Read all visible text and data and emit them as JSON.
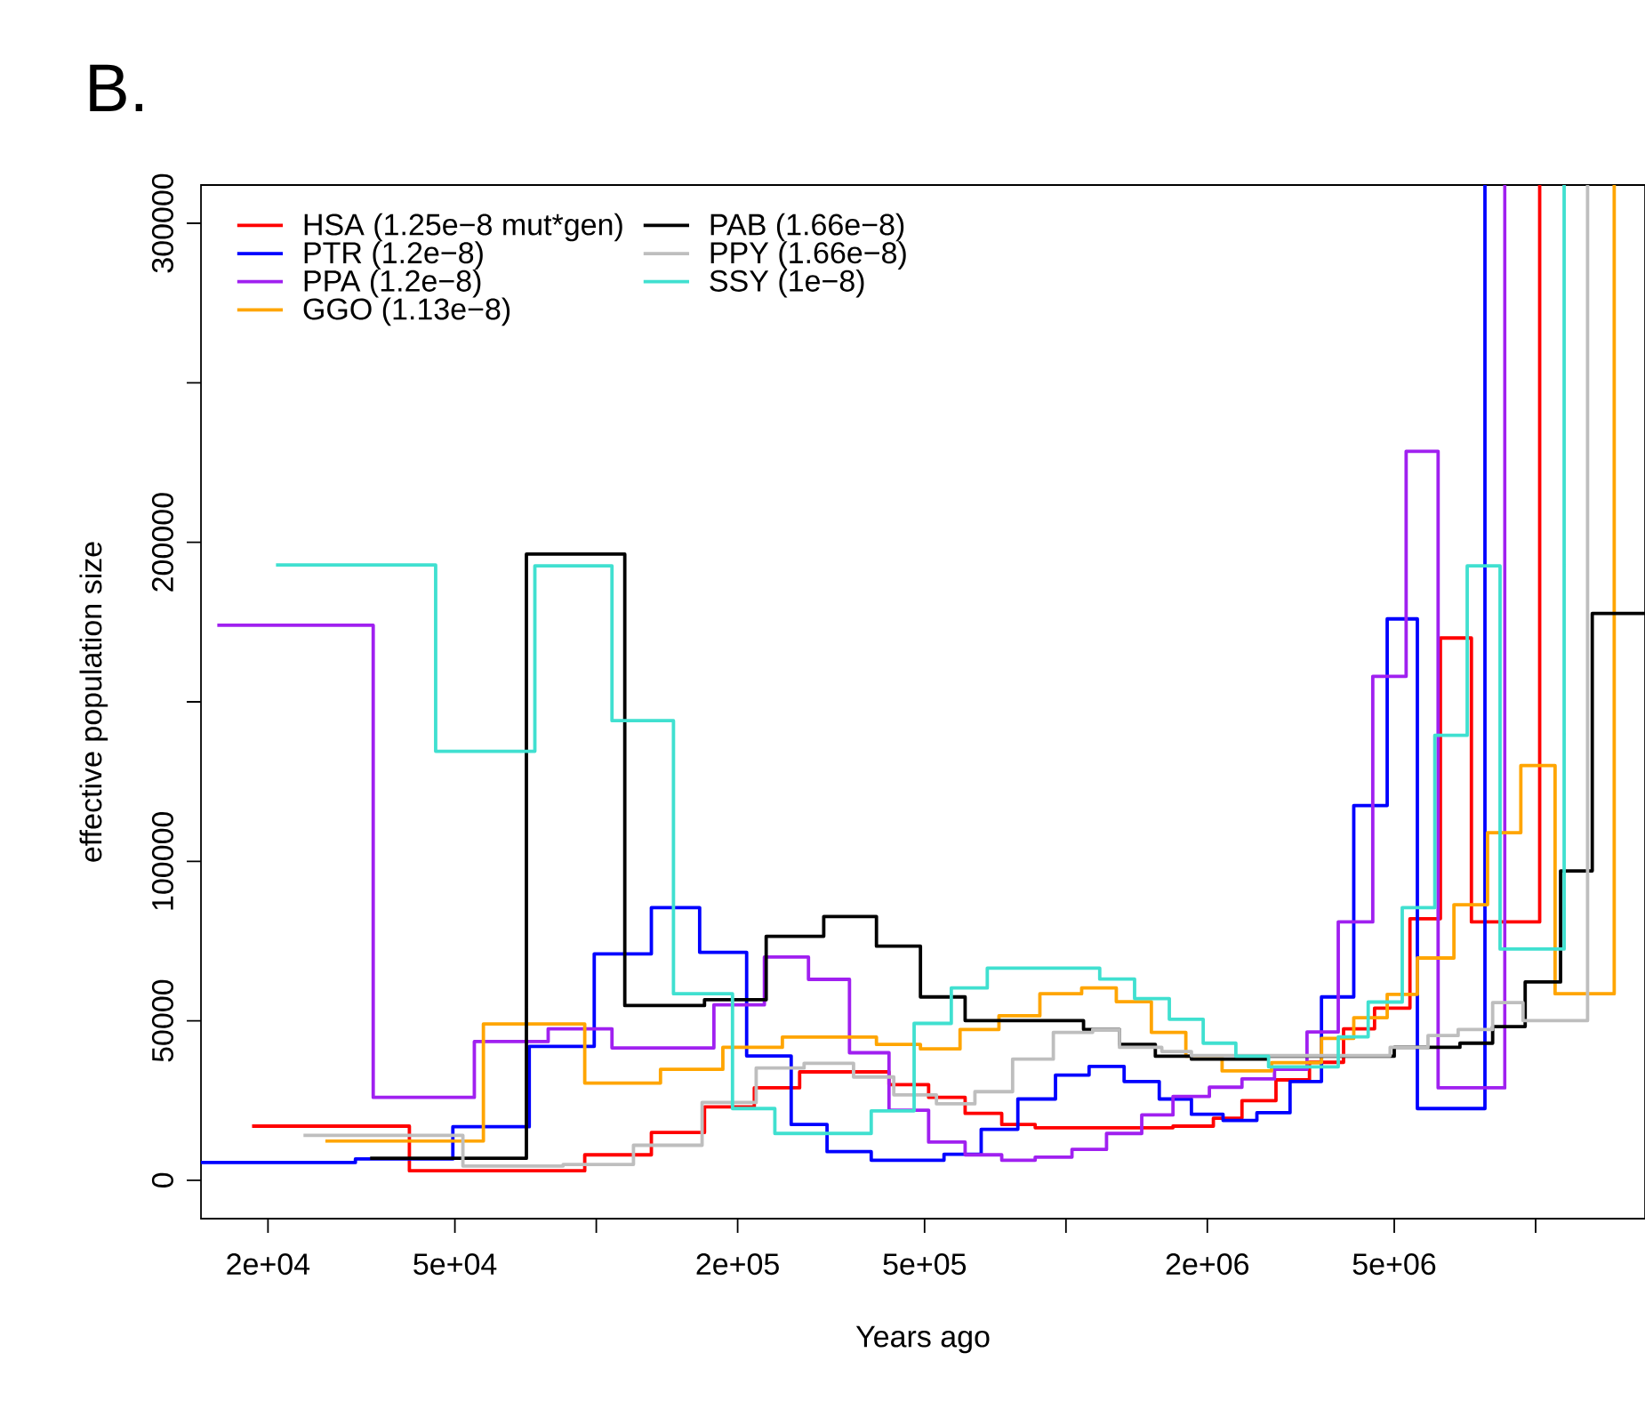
{
  "chart_data": {
    "type": "step",
    "title": "B.",
    "xlabel": "Years ago",
    "ylabel": "effective population size",
    "log": "x",
    "legend": "top left",
    "xlim": [
      14400,
      17100000
    ],
    "ylim": [
      -12000,
      312000
    ],
    "xticks": [
      {
        "value": 20000,
        "label": "2e+04"
      },
      {
        "value": 50000,
        "label": "5e+04"
      },
      {
        "value": 100000,
        "label": null
      },
      {
        "value": 200000,
        "label": "2e+05"
      },
      {
        "value": 500000,
        "label": "5e+05"
      },
      {
        "value": 1000000,
        "label": null
      },
      {
        "value": 2000000,
        "label": "2e+06"
      },
      {
        "value": 5000000,
        "label": "5e+06"
      },
      {
        "value": 10000000,
        "label": null
      }
    ],
    "yticks": [
      0,
      50000,
      100000,
      {
        "value": 150000,
        "label": null
      },
      200000,
      {
        "value": 250000,
        "label": null
      },
      300000
    ],
    "series": [
      {
        "name": "HSA (1.25e−8 mut*gen)",
        "color": "#ff0000",
        "x": [
          18500,
          40000,
          94500,
          131000,
          170000,
          217000,
          271000,
          420000,
          510000,
          610000,
          730000,
          860000,
          1690000,
          2060000,
          2370000,
          2800000,
          3300000,
          3900000,
          4540000,
          5400000,
          6270000,
          7300000,
          10200000
        ],
        "values": [
          17000,
          3000,
          8000,
          15000,
          23000,
          29000,
          34000,
          30000,
          26000,
          21000,
          17500,
          16500,
          17000,
          19500,
          25000,
          31500,
          37000,
          47500,
          54000,
          82000,
          170000,
          81000,
          312000
        ]
      },
      {
        "name": "PTR (1.2e−8)",
        "color": "#0000ff",
        "x": [
          14400,
          30700,
          49500,
          72000,
          99000,
          131000,
          166000,
          209000,
          260000,
          310000,
          385000,
          550000,
          660000,
          790000,
          950000,
          1120000,
          1330000,
          1580000,
          1850000,
          2160000,
          2550000,
          3000000,
          3500000,
          4100000,
          4830000,
          5600000,
          7800000
        ],
        "values": [
          5600,
          6700,
          16800,
          42000,
          71000,
          85500,
          71500,
          39000,
          17500,
          9000,
          6300,
          8200,
          16000,
          25500,
          33000,
          35700,
          31000,
          25500,
          20700,
          18800,
          21200,
          31000,
          57500,
          117500,
          176000,
          22500,
          312000
        ]
      },
      {
        "name": "PPA (1.2e−8)",
        "color": "#a020f0",
        "x": [
          15600,
          33500,
          55000,
          79000,
          108000,
          178000,
          228000,
          283000,
          346000,
          420000,
          510000,
          610000,
          730000,
          860000,
          1030000,
          1220000,
          1450000,
          1690000,
          2020000,
          2370000,
          2780000,
          3260000,
          3800000,
          4500000,
          5300000,
          6200000,
          8600000
        ],
        "values": [
          174000,
          26000,
          43500,
          47500,
          41500,
          55000,
          70000,
          63000,
          40000,
          22000,
          12000,
          8000,
          6300,
          7300,
          9700,
          14700,
          20500,
          26300,
          29200,
          31800,
          34800,
          46500,
          81000,
          158000,
          228500,
          29000,
          312000
        ]
      },
      {
        "name": "GGO (1.13e−8)",
        "color": "#ffa500",
        "x": [
          26500,
          57500,
          94500,
          137000,
          186000,
          249000,
          395000,
          490000,
          595000,
          720000,
          880000,
          1080000,
          1280000,
          1520000,
          1800000,
          2150000,
          2740000,
          3500000,
          4100000,
          4830000,
          5600000,
          6700000,
          7900000,
          9300000,
          11000000,
          14700000
        ],
        "values": [
          12300,
          49000,
          30500,
          34800,
          41700,
          44900,
          42600,
          41200,
          47300,
          51600,
          58500,
          60300,
          56000,
          46400,
          38900,
          34300,
          36900,
          44500,
          51000,
          58300,
          69700,
          86400,
          109000,
          130000,
          58500,
          312000
        ]
      },
      {
        "name": "PAB (1.66e−8)",
        "color": "#000000",
        "x": [
          33000,
          71000,
          115000,
          170000,
          230000,
          305000,
          395000,
          490000,
          610000,
          1090000,
          1300000,
          1550000,
          1850000,
          2680000,
          5000000,
          6900000,
          8100000,
          9500000,
          11300000,
          13200000,
          17100000
        ],
        "values": [
          6900,
          196300,
          54800,
          56600,
          76500,
          82700,
          73400,
          57500,
          50100,
          47300,
          42600,
          38900,
          38000,
          38900,
          41700,
          43000,
          48200,
          62200,
          97000,
          177700,
          177700
        ]
      },
      {
        "name": "PPY (1.66e−8)",
        "color": "#bebebe",
        "x": [
          23800,
          52000,
          85000,
          120000,
          168000,
          219000,
          277000,
          353000,
          430000,
          530000,
          640000,
          770000,
          940000,
          1140000,
          1300000,
          1600000,
          1850000,
          4900000,
          5900000,
          6840000,
          8100000,
          9400000,
          12900000
        ],
        "values": [
          14100,
          4500,
          5000,
          11000,
          24400,
          35200,
          36700,
          32400,
          26800,
          24000,
          27800,
          38000,
          46400,
          47300,
          41700,
          40400,
          39100,
          41700,
          45400,
          47300,
          55700,
          50100,
          312000
        ]
      },
      {
        "name": "SSY (1e−8)",
        "color": "#40e0d0",
        "x": [
          20800,
          45500,
          74000,
          108000,
          146000,
          195000,
          240000,
          385000,
          475000,
          570000,
          680000,
          1180000,
          1400000,
          1660000,
          1960000,
          2300000,
          2700000,
          3800000,
          4400000,
          5200000,
          6100000,
          7150000,
          8400000,
          11500000
        ],
        "values": [
          192900,
          134500,
          192600,
          144100,
          58500,
          22500,
          14700,
          21800,
          49200,
          60300,
          66500,
          63100,
          57000,
          50500,
          43000,
          38900,
          35600,
          45000,
          55900,
          85500,
          139500,
          192600,
          72500,
          312000
        ]
      }
    ]
  }
}
